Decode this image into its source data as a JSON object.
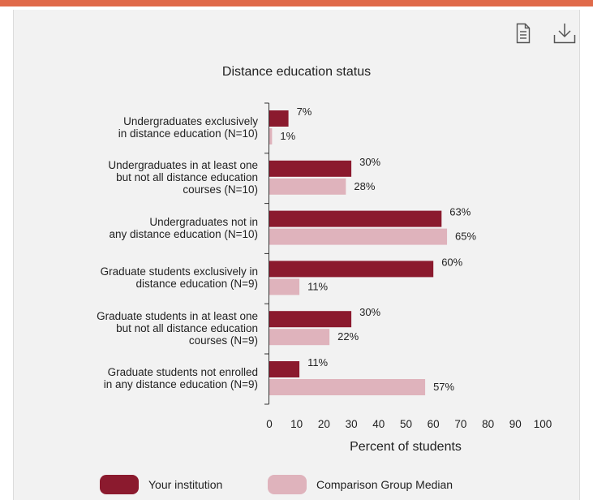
{
  "toolbar": {
    "data_icon": "document-icon",
    "download_icon": "download-icon"
  },
  "colors": {
    "your_institution": "#8b1a2e",
    "comparison": "#dfb3bc"
  },
  "chart_data": {
    "type": "bar",
    "orientation": "horizontal",
    "title": "Distance education status",
    "xlabel": "Percent of students",
    "ylabel": "",
    "xlim": [
      0,
      100
    ],
    "xticks": [
      0,
      10,
      20,
      30,
      40,
      50,
      60,
      70,
      80,
      90,
      100
    ],
    "grid": false,
    "legend_position": "bottom",
    "categories": [
      [
        "Undergraduates exclusively",
        "in distance education (N=10)"
      ],
      [
        "Undergraduates in at least one",
        "but not all distance education",
        "courses (N=10)"
      ],
      [
        "Undergraduates not in",
        "any distance education (N=10)"
      ],
      [
        "Graduate students exclusively in",
        "distance education (N=9)"
      ],
      [
        "Graduate students in at least one",
        "but not all distance education",
        "courses (N=9)"
      ],
      [
        "Graduate students not enrolled",
        "in any distance education (N=9)"
      ]
    ],
    "series": [
      {
        "name": "Your institution",
        "values": [
          7,
          30,
          63,
          60,
          30,
          11
        ],
        "labels": [
          "7%",
          "30%",
          "63%",
          "60%",
          "30%",
          "11%"
        ]
      },
      {
        "name": "Comparison Group Median",
        "values": [
          1,
          28,
          65,
          11,
          22,
          57
        ],
        "labels": [
          "1%",
          "28%",
          "65%",
          "11%",
          "22%",
          "57%"
        ]
      }
    ]
  }
}
